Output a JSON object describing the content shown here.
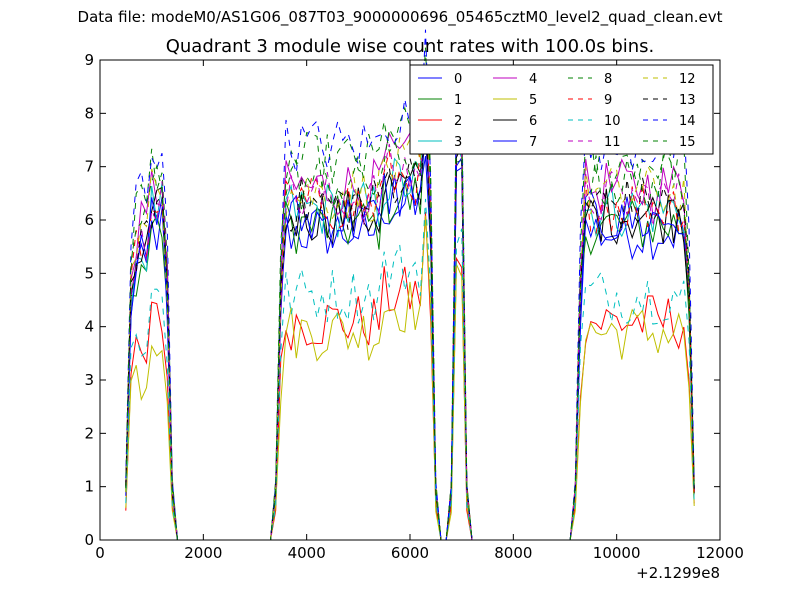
{
  "header": {
    "data_file": "Data file: modeM0/AS1G06_087T03_9000000696_05465cztM0_level2_quad_clean.evt"
  },
  "chart_data": {
    "type": "line",
    "title": "Quadrant 3 module wise count rates with 100.0s bins.",
    "xlabel": "",
    "ylabel": "",
    "x_offset_label": "+2.1299e8",
    "xlim": [
      0,
      12000
    ],
    "ylim": [
      0,
      9
    ],
    "xticks": [
      "0",
      "2000",
      "4000",
      "6000",
      "8000",
      "10000",
      "12000"
    ],
    "yticks": [
      "0",
      "1",
      "2",
      "3",
      "4",
      "5",
      "6",
      "7",
      "8",
      "9"
    ],
    "grid": false,
    "legend_position": "top-right",
    "legend_columns": 4,
    "series": [
      {
        "name": "0",
        "color": "#0000ff",
        "dash": "solid",
        "level": 5.8
      },
      {
        "name": "1",
        "color": "#008000",
        "dash": "solid",
        "level": 5.9
      },
      {
        "name": "2",
        "color": "#ff0000",
        "dash": "solid",
        "level": 4.1
      },
      {
        "name": "3",
        "color": "#00bfbf",
        "dash": "solid",
        "level": 6.2
      },
      {
        "name": "4",
        "color": "#bf00bf",
        "dash": "solid",
        "level": 6.6
      },
      {
        "name": "5",
        "color": "#bfbf00",
        "dash": "solid",
        "level": 3.9
      },
      {
        "name": "6",
        "color": "#000000",
        "dash": "solid",
        "level": 6.1
      },
      {
        "name": "7",
        "color": "#0000ff",
        "dash": "solid",
        "level": 6.0
      },
      {
        "name": "8",
        "color": "#008000",
        "dash": "dashed",
        "level": 7.1
      },
      {
        "name": "9",
        "color": "#ff0000",
        "dash": "dashed",
        "level": 6.3
      },
      {
        "name": "10",
        "color": "#00bfbf",
        "dash": "dashed",
        "level": 4.6
      },
      {
        "name": "11",
        "color": "#bf00bf",
        "dash": "dashed",
        "level": 6.4
      },
      {
        "name": "12",
        "color": "#bfbf00",
        "dash": "dashed",
        "level": 6.5
      },
      {
        "name": "13",
        "color": "#000000",
        "dash": "dashed",
        "level": 6.3
      },
      {
        "name": "14",
        "color": "#0000ff",
        "dash": "dashed",
        "level": 7.4
      },
      {
        "name": "15",
        "color": "#008000",
        "dash": "dashed",
        "level": 6.7
      }
    ],
    "active_segments": [
      [
        500,
        1400
      ],
      [
        3400,
        6500
      ],
      [
        6800,
        7100
      ],
      [
        9200,
        11500
      ]
    ],
    "bin_seconds": 100
  }
}
